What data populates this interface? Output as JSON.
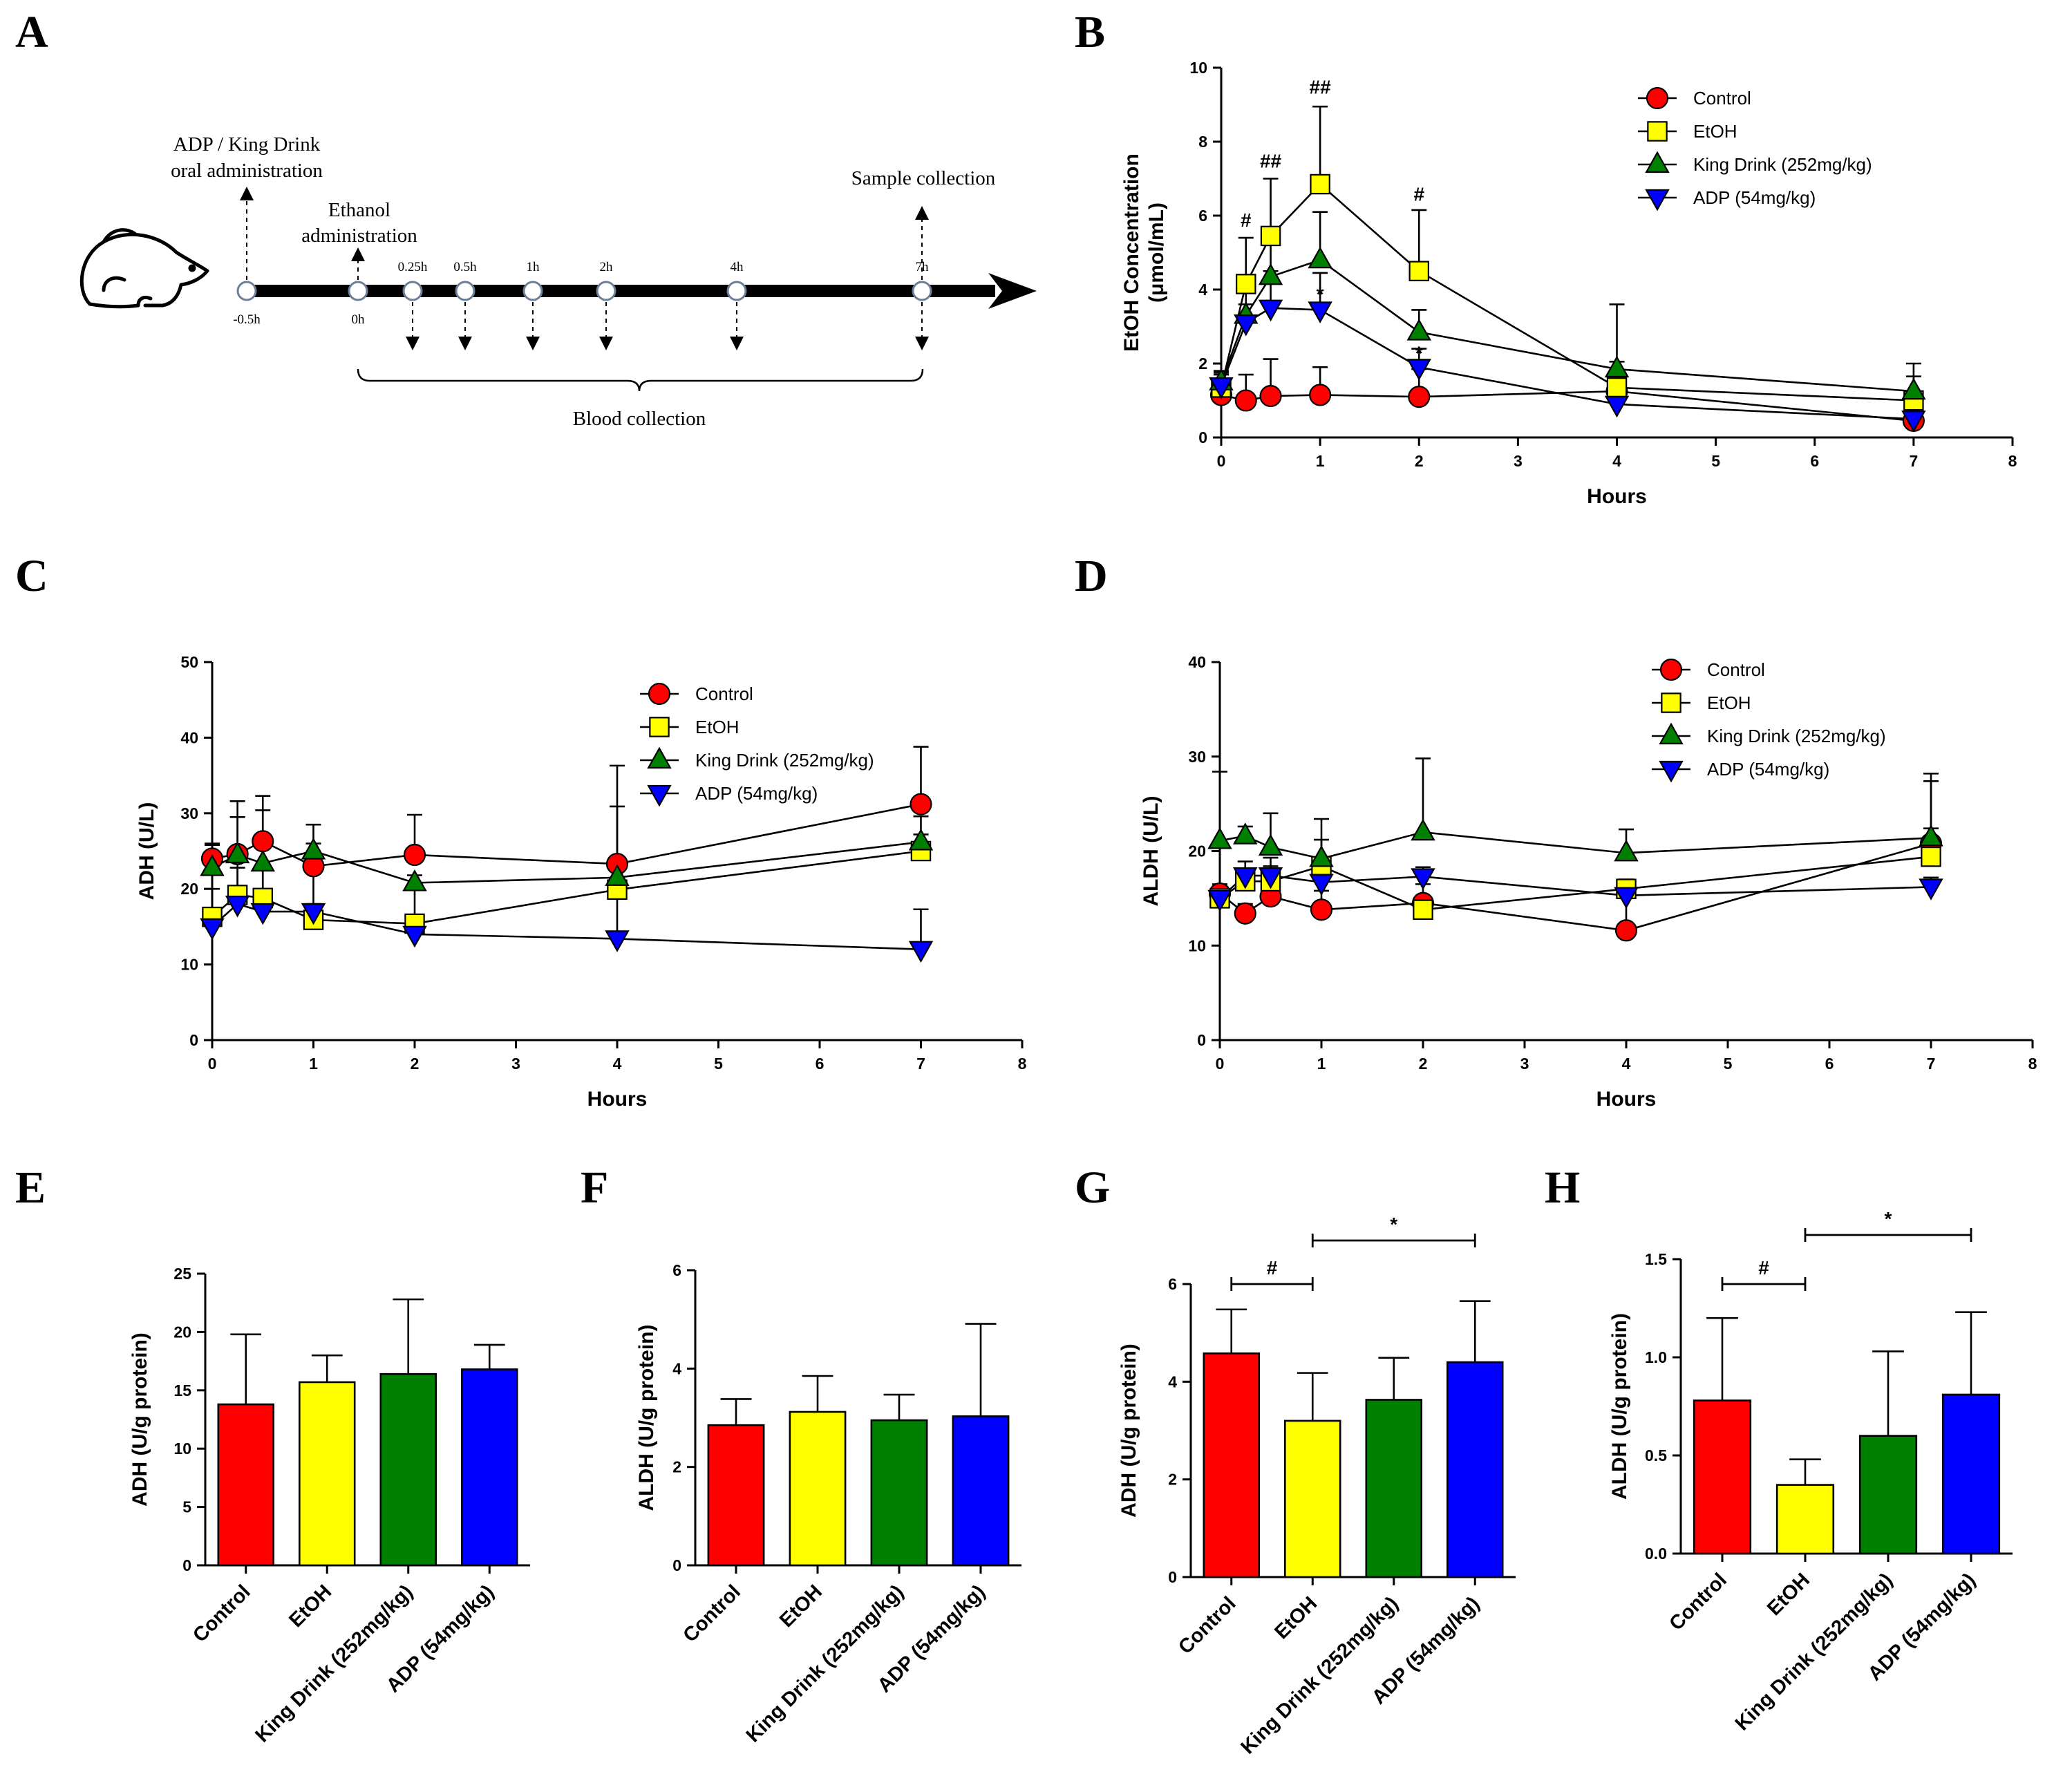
{
  "figure": {
    "colors": {
      "control": "#ff0000",
      "etoh": "#ffff00",
      "king": "#008000",
      "adp": "#0000ff"
    },
    "series_names": [
      "Control",
      "EtOH",
      "King Drink (252mg/kg)",
      "ADP (54mg/kg)"
    ]
  },
  "panelA": {
    "letter": "A",
    "icon": "mouse-icon",
    "top_label_1": "ADP / King Drink",
    "top_label_2": "oral administration",
    "ethanol_label_1": "Ethanol",
    "ethanol_label_2": "administration",
    "sample_label": "Sample collection",
    "blood_label": "Blood collection",
    "time_points": [
      "-0.5h",
      "0h",
      "0.25h",
      "0.5h",
      "1h",
      "2h",
      "4h",
      "7h"
    ]
  },
  "chart_data": [
    {
      "panel": "B",
      "type": "line",
      "ylabel_1": "EtOH Concentration",
      "ylabel_2": "(μmol/mL)",
      "xlabel": "Hours",
      "xlim": [
        0,
        8
      ],
      "ylim": [
        0,
        10
      ],
      "xticks": [
        "0",
        "1",
        "2",
        "3",
        "4",
        "5",
        "6",
        "7",
        "8"
      ],
      "yticks": [
        "0",
        "2",
        "4",
        "6",
        "8",
        "10"
      ],
      "legend": [
        "Control",
        "EtOH",
        "King Drink (252mg/kg)",
        "ADP (54mg/kg)"
      ],
      "x": [
        0,
        0.25,
        0.5,
        1,
        2,
        4,
        7
      ],
      "series": [
        {
          "name": "Control",
          "values": [
            1.15,
            1.0,
            1.12,
            1.15,
            1.1,
            1.25,
            0.45
          ],
          "errors": [
            0.4,
            0.7,
            1.0,
            0.75,
            0.75,
            0.3,
            0.15
          ]
        },
        {
          "name": "EtOH",
          "values": [
            1.35,
            4.15,
            5.45,
            6.85,
            4.5,
            1.35,
            1.0
          ],
          "errors": [
            0.4,
            1.25,
            1.55,
            2.1,
            1.65,
            2.25,
            0.65
          ]
        },
        {
          "name": "King Drink (252mg/kg)",
          "values": [
            1.5,
            3.3,
            4.35,
            4.8,
            2.85,
            1.85,
            1.25
          ],
          "errors": [
            0.3,
            0.8,
            1.2,
            1.3,
            0.6,
            0.2,
            0.75
          ]
        },
        {
          "name": "ADP (54mg/kg)",
          "values": [
            1.4,
            3.1,
            3.5,
            3.45,
            1.9,
            0.9,
            0.5
          ],
          "errors": [
            0.3,
            0.5,
            1.0,
            1.0,
            0.5,
            0.7,
            0.3
          ]
        }
      ],
      "annotations": [
        {
          "x": 0.25,
          "y": 5.7,
          "text": "#"
        },
        {
          "x": 0.5,
          "y": 7.3,
          "text": "##"
        },
        {
          "x": 1,
          "y": 9.3,
          "text": "##"
        },
        {
          "x": 2,
          "y": 6.4,
          "text": "#"
        },
        {
          "x": 1,
          "y": 3.7,
          "text": "*"
        },
        {
          "x": 2,
          "y": 2.1,
          "text": "*"
        }
      ]
    },
    {
      "panel": "C",
      "type": "line",
      "ylabel": "ADH (U/L)",
      "xlabel": "Hours",
      "xlim": [
        0,
        8
      ],
      "ylim": [
        0,
        50
      ],
      "xticks": [
        "0",
        "1",
        "2",
        "3",
        "4",
        "5",
        "6",
        "7",
        "8"
      ],
      "yticks": [
        "0",
        "10",
        "20",
        "30",
        "40",
        "50"
      ],
      "legend": [
        "Control",
        "EtOH",
        "King Drink (252mg/kg)",
        "ADP (54mg/kg)"
      ],
      "x": [
        0,
        0.25,
        0.5,
        1,
        2,
        4,
        7
      ],
      "series": [
        {
          "name": "Control",
          "values": [
            24.0,
            24.6,
            26.3,
            23.0,
            24.5,
            23.3,
            31.2
          ],
          "errors": [
            2.0,
            7.0,
            6.0,
            3.0,
            5.3,
            13.0,
            7.6
          ]
        },
        {
          "name": "EtOH",
          "values": [
            16.3,
            19.2,
            18.8,
            15.9,
            15.4,
            19.9,
            25.0
          ],
          "errors": [
            1.0,
            6.0,
            7.3,
            6.3,
            1.0,
            11.0,
            4.6
          ]
        },
        {
          "name": "King Drink (252mg/kg)",
          "values": [
            22.8,
            24.5,
            23.4,
            25.0,
            20.8,
            21.5,
            26.2
          ],
          "errors": [
            3.0,
            5.0,
            7.0,
            3.5,
            1.0,
            1.0,
            1.0
          ]
        },
        {
          "name": "ADP (54mg/kg)",
          "values": [
            15.0,
            18.0,
            17.0,
            17.0,
            14.0,
            13.4,
            12.0
          ],
          "errors": [
            5.0,
            4.8,
            5.5,
            1.0,
            6.0,
            6.8,
            5.3
          ]
        }
      ]
    },
    {
      "panel": "D",
      "type": "line",
      "ylabel": "ALDH (U/L)",
      "xlabel": "Hours",
      "xlim": [
        0,
        8
      ],
      "ylim": [
        0,
        40
      ],
      "xticks": [
        "0",
        "1",
        "2",
        "3",
        "4",
        "5",
        "6",
        "7",
        "8"
      ],
      "yticks": [
        "0",
        "10",
        "20",
        "30",
        "40"
      ],
      "legend": [
        "Control",
        "EtOH",
        "King Drink (252mg/kg)",
        "ADP (54mg/kg)"
      ],
      "x": [
        0,
        0.25,
        0.5,
        1,
        2,
        4,
        7
      ],
      "series": [
        {
          "name": "Control",
          "values": [
            15.5,
            13.4,
            15.2,
            13.8,
            14.5,
            11.6,
            20.8
          ],
          "errors": [
            1.0,
            1.0,
            2.0,
            2.0,
            2.0,
            3.6,
            6.6
          ]
        },
        {
          "name": "EtOH",
          "values": [
            15.0,
            16.8,
            16.8,
            18.4,
            13.8,
            16.0,
            19.4
          ],
          "errors": [
            1.0,
            1.0,
            2.5,
            2.8,
            1.0,
            1.0,
            8.8
          ]
        },
        {
          "name": "King Drink (252mg/kg)",
          "values": [
            21.1,
            21.6,
            20.4,
            19.2,
            22.0,
            19.8,
            21.4
          ],
          "errors": [
            7.3,
            1.0,
            3.6,
            4.2,
            7.8,
            2.5,
            1.0
          ]
        },
        {
          "name": "ADP (54mg/kg)",
          "values": [
            15.0,
            17.4,
            17.4,
            16.7,
            17.3,
            15.3,
            16.2
          ],
          "errors": [
            1.0,
            1.5,
            1.0,
            1.0,
            1.0,
            1.0,
            1.0
          ]
        }
      ]
    },
    {
      "panel": "E",
      "type": "bar",
      "ylabel": "ADH (U/g protein)",
      "categories": [
        "Control",
        "EtOH",
        "King Drink (252mg/kg)",
        "ADP (54mg/kg)"
      ],
      "values": [
        13.8,
        15.7,
        16.4,
        16.8
      ],
      "errors": [
        6.0,
        2.3,
        6.4,
        2.1
      ],
      "ylim": [
        0,
        25
      ],
      "yticks": [
        "0",
        "5",
        "10",
        "15",
        "20",
        "25"
      ]
    },
    {
      "panel": "F",
      "type": "bar",
      "ylabel": "ALDH (U/g protein)",
      "categories": [
        "Control",
        "EtOH",
        "King Drink (252mg/kg)",
        "ADP (54mg/kg)"
      ],
      "values": [
        2.85,
        3.12,
        2.95,
        3.03
      ],
      "errors": [
        0.53,
        0.73,
        0.52,
        1.88
      ],
      "ylim": [
        0,
        6
      ],
      "yticks": [
        "0",
        "2",
        "4",
        "6"
      ]
    },
    {
      "panel": "G",
      "type": "bar",
      "ylabel": "ADH (U/g protein)",
      "categories": [
        "Control",
        "EtOH",
        "King Drink (252mg/kg)",
        "ADP (54mg/kg)"
      ],
      "values": [
        4.58,
        3.2,
        3.63,
        4.4
      ],
      "errors": [
        0.9,
        0.98,
        0.86,
        1.25
      ],
      "ylim": [
        0,
        6
      ],
      "yticks": [
        "0",
        "2",
        "4",
        "6"
      ],
      "brackets": [
        {
          "from": 0,
          "to": 1,
          "text": "#"
        },
        {
          "from": 1,
          "to": 3,
          "text": "*"
        }
      ]
    },
    {
      "panel": "H",
      "type": "bar",
      "ylabel": "ALDH (U/g protein)",
      "categories": [
        "Control",
        "EtOH",
        "King Drink (252mg/kg)",
        "ADP (54mg/kg)"
      ],
      "values": [
        0.78,
        0.35,
        0.6,
        0.81
      ],
      "errors": [
        0.42,
        0.13,
        0.43,
        0.42
      ],
      "ylim": [
        0,
        1.5
      ],
      "yticks": [
        "0.0",
        "0.5",
        "1.0",
        "1.5"
      ],
      "brackets": [
        {
          "from": 0,
          "to": 1,
          "text": "#"
        },
        {
          "from": 1,
          "to": 3,
          "text": "*"
        }
      ]
    }
  ]
}
